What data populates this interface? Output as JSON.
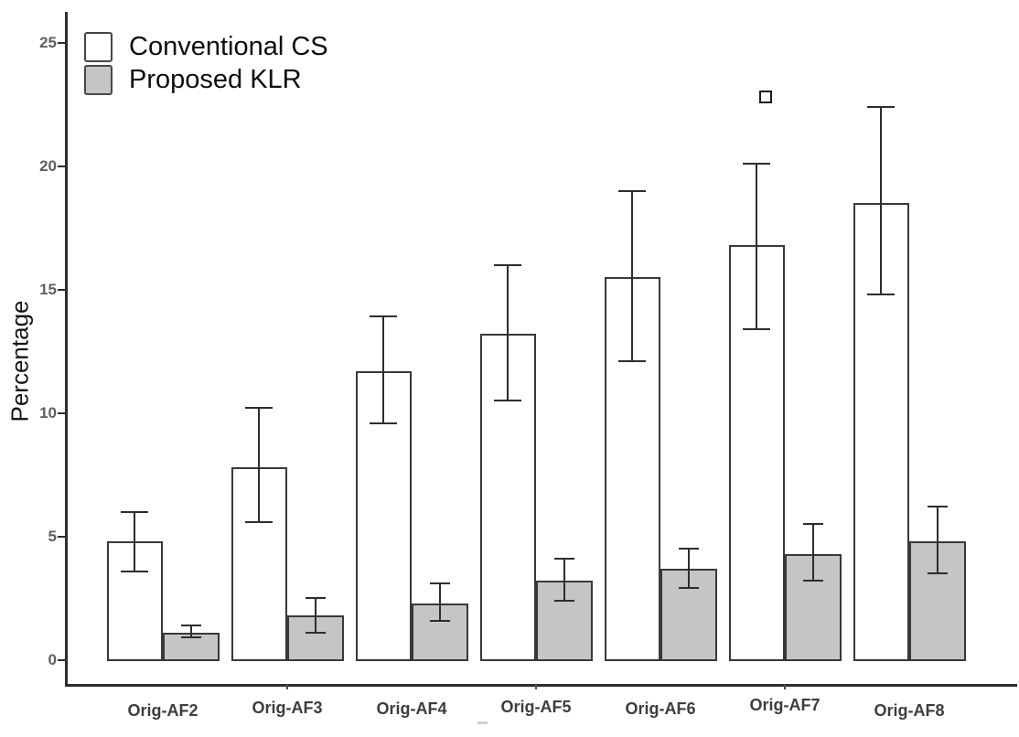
{
  "figure": {
    "kind": "grouped-bar-chart-with-error-bars"
  },
  "y_axis": {
    "title": "Percentage",
    "tick_values": [
      0,
      5,
      10,
      15,
      20,
      25
    ]
  },
  "x_axis": {
    "categories": [
      "Orig-AF2",
      "Orig-AF3",
      "Orig-AF4",
      "Orig-AF5",
      "Orig-AF6",
      "Orig-AF7",
      "Orig-AF8"
    ]
  },
  "legend": {
    "position": "top-left",
    "items": [
      {
        "label": "Conventional CS",
        "fill": "#ffffff"
      },
      {
        "label": "Proposed KLR",
        "fill": "#c5c5c5"
      }
    ]
  },
  "chart_data": {
    "type": "bar",
    "title": "",
    "xlabel": "",
    "ylabel": "Percentage",
    "ylim": [
      0,
      26.5
    ],
    "grid": false,
    "legend_position": "top-left",
    "categories": [
      "Orig-AF2",
      "Orig-AF3",
      "Orig-AF4",
      "Orig-AF5",
      "Orig-AF6",
      "Orig-AF7",
      "Orig-AF8"
    ],
    "series": [
      {
        "name": "Conventional CS",
        "fill": "#ffffff",
        "values": [
          4.8,
          7.8,
          11.7,
          13.2,
          15.5,
          16.8,
          18.5
        ],
        "error_low": [
          3.6,
          5.6,
          9.6,
          10.5,
          12.1,
          13.4,
          14.8
        ],
        "error_high": [
          6.0,
          10.2,
          13.9,
          16.0,
          19.0,
          20.1,
          22.4
        ]
      },
      {
        "name": "Proposed KLR",
        "fill": "#c5c5c5",
        "values": [
          1.1,
          1.8,
          2.3,
          3.2,
          3.7,
          4.3,
          4.8
        ],
        "error_low": [
          0.9,
          1.1,
          1.6,
          2.4,
          2.9,
          3.2,
          3.5
        ],
        "error_high": [
          1.4,
          2.5,
          3.1,
          4.1,
          4.5,
          5.5,
          6.2
        ]
      }
    ],
    "annotations": [
      {
        "shape": "open-square",
        "category": "Orig-AF7",
        "value": 22.8
      }
    ]
  }
}
